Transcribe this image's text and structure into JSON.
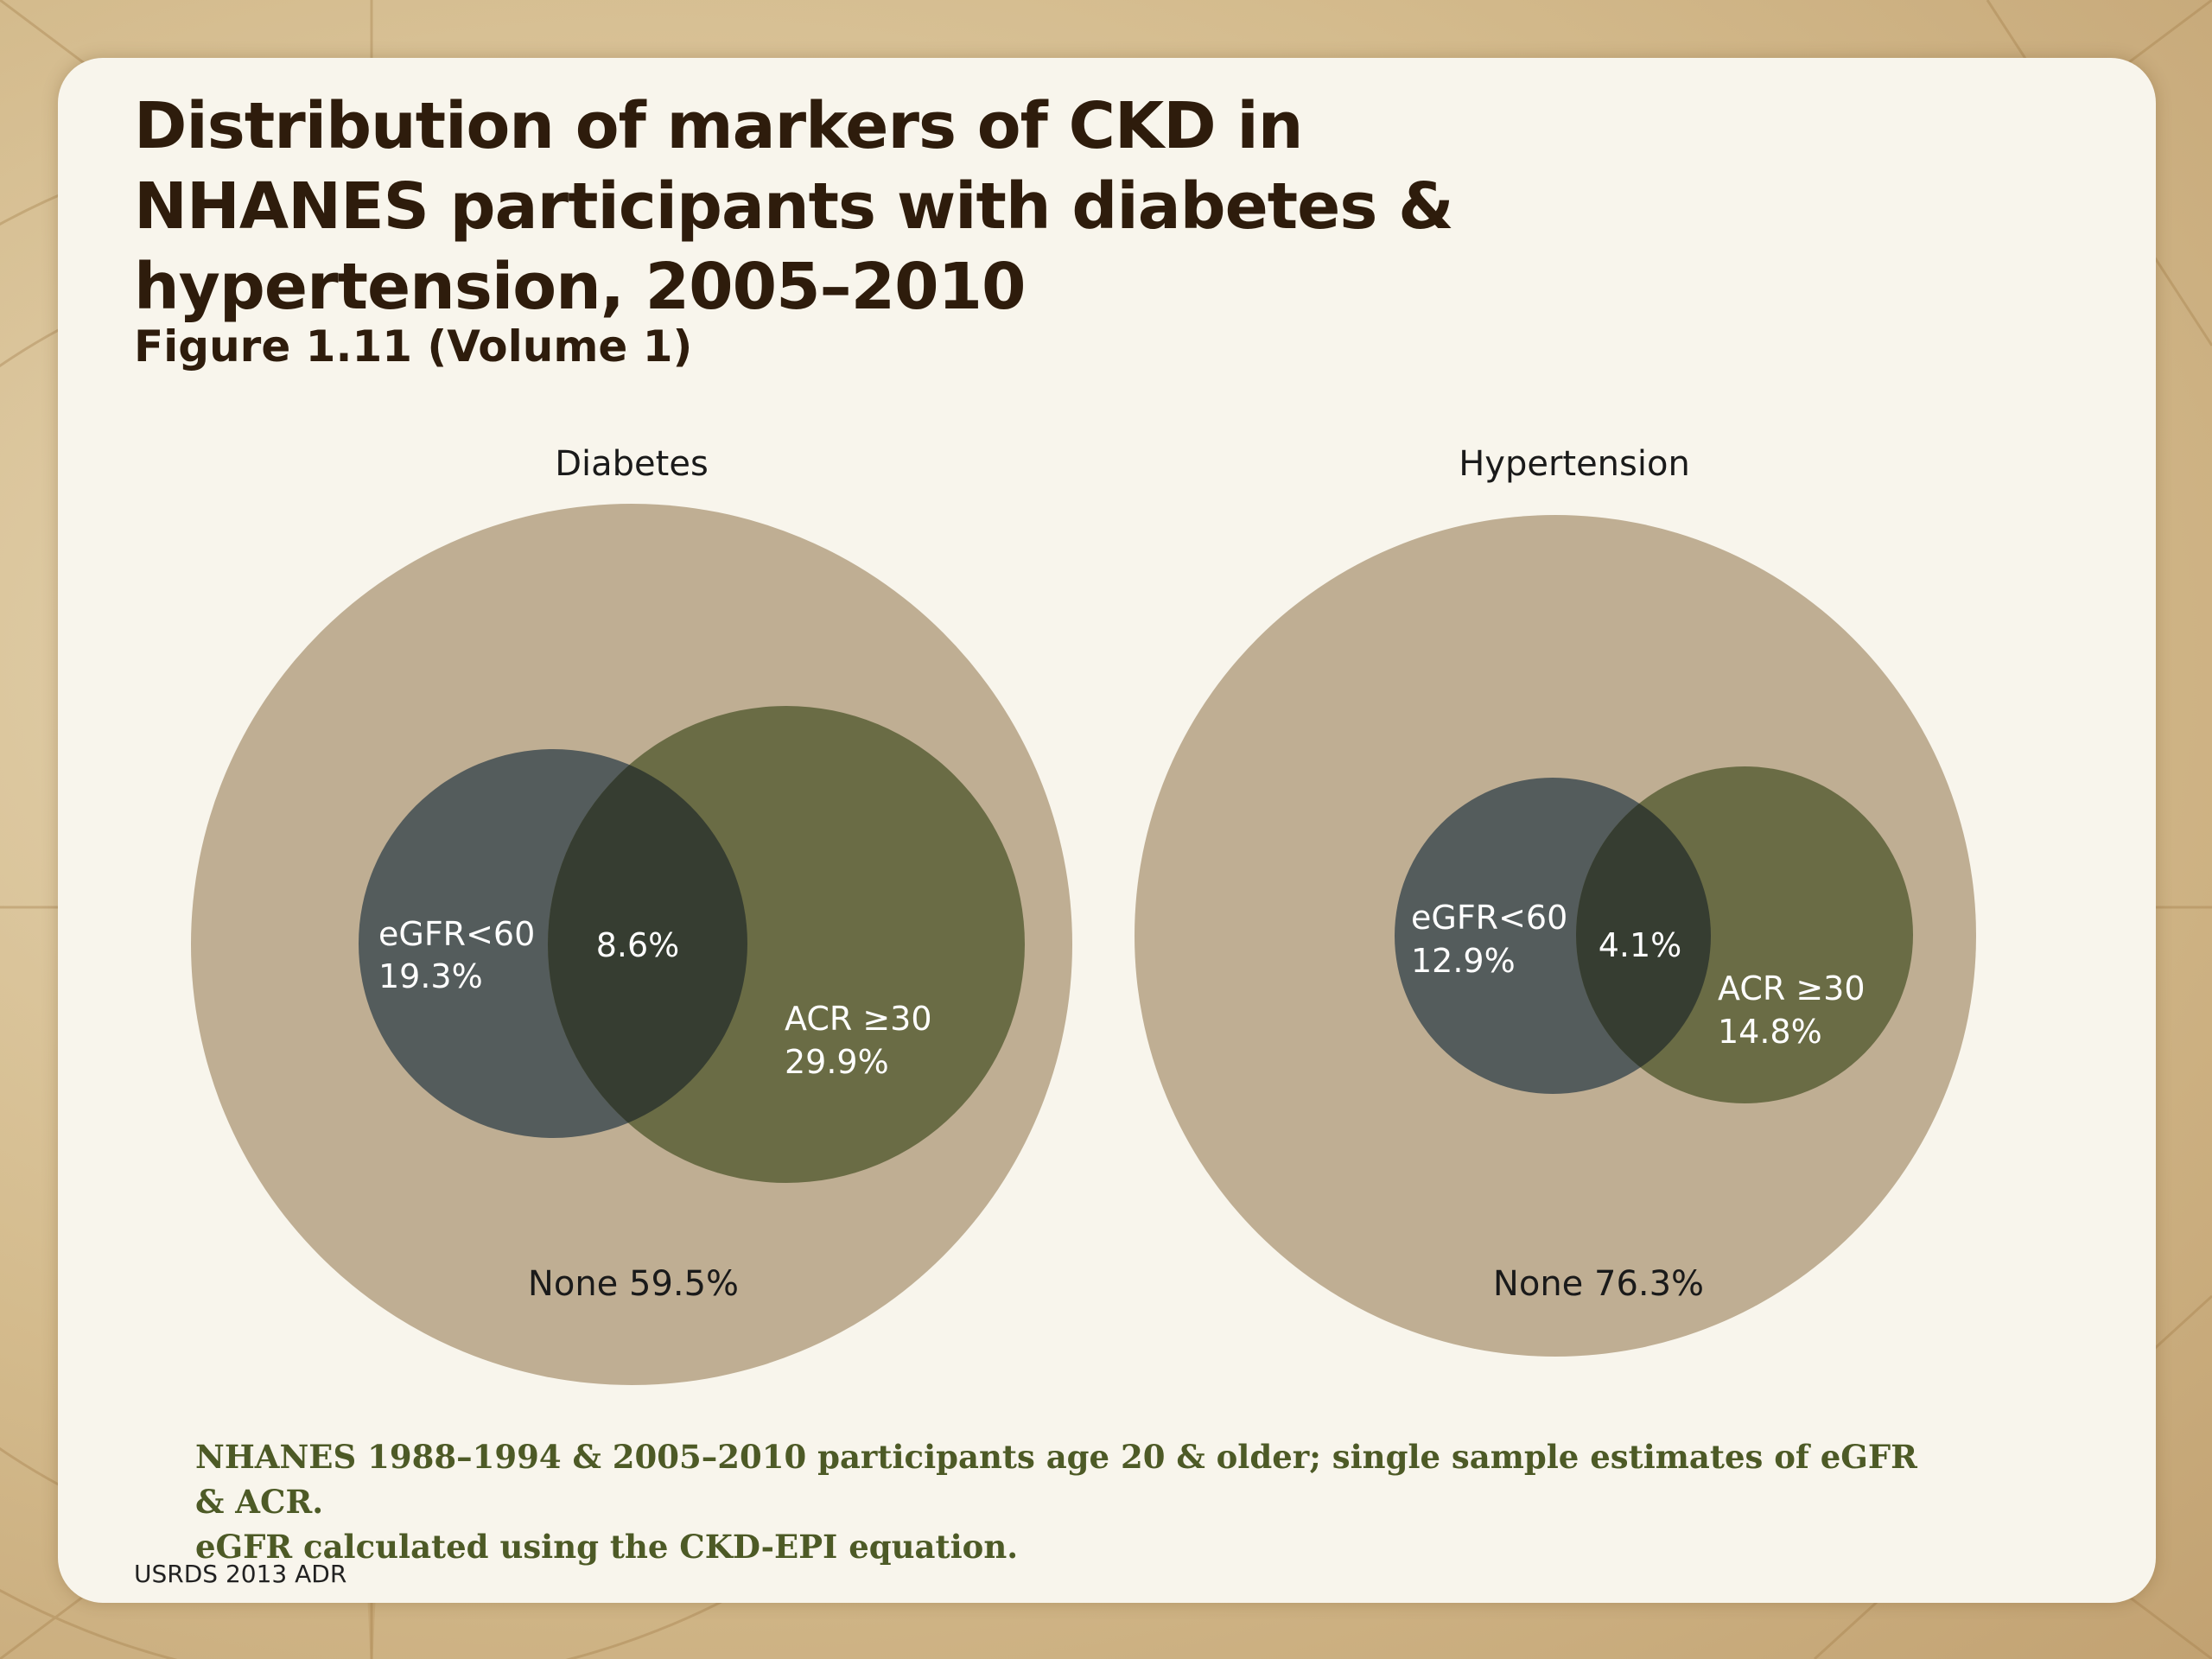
{
  "slide": {
    "title": "Distribution of markers of CKD in NHANES participants with diabetes & hypertension, 2005–2010",
    "subtitle": "Figure 1.11 (Volume 1)",
    "footnote_line1": "NHANES 1988–1994 & 2005–2010 participants age 20 & older; single sample estimates of eGFR & ACR.",
    "footnote_line2": "eGFR calculated using the CKD-EPI equation.",
    "source": "USRDS 2013 ADR"
  },
  "colors": {
    "outer_circle": "#bfae93",
    "egfr_circle": "#545c5c",
    "acr_circle": "#6a6c45",
    "overlap": "#363d31",
    "label_text": "#ffffff",
    "panel_text": "#1a1a1a"
  },
  "chart_data": {
    "type": "venn",
    "diagrams": [
      {
        "name": "Diabetes",
        "sets": [
          {
            "label": "eGFR<60",
            "value": "19.3%"
          },
          {
            "label": "ACR ≥30",
            "value": "29.9%"
          }
        ],
        "intersection": "8.6%",
        "none": "None 59.5%"
      },
      {
        "name": "Hypertension",
        "sets": [
          {
            "label": "eGFR<60",
            "value": "12.9%"
          },
          {
            "label": "ACR ≥30",
            "value": "14.8%"
          }
        ],
        "intersection": "4.1%",
        "none": "None 76.3%"
      }
    ]
  }
}
